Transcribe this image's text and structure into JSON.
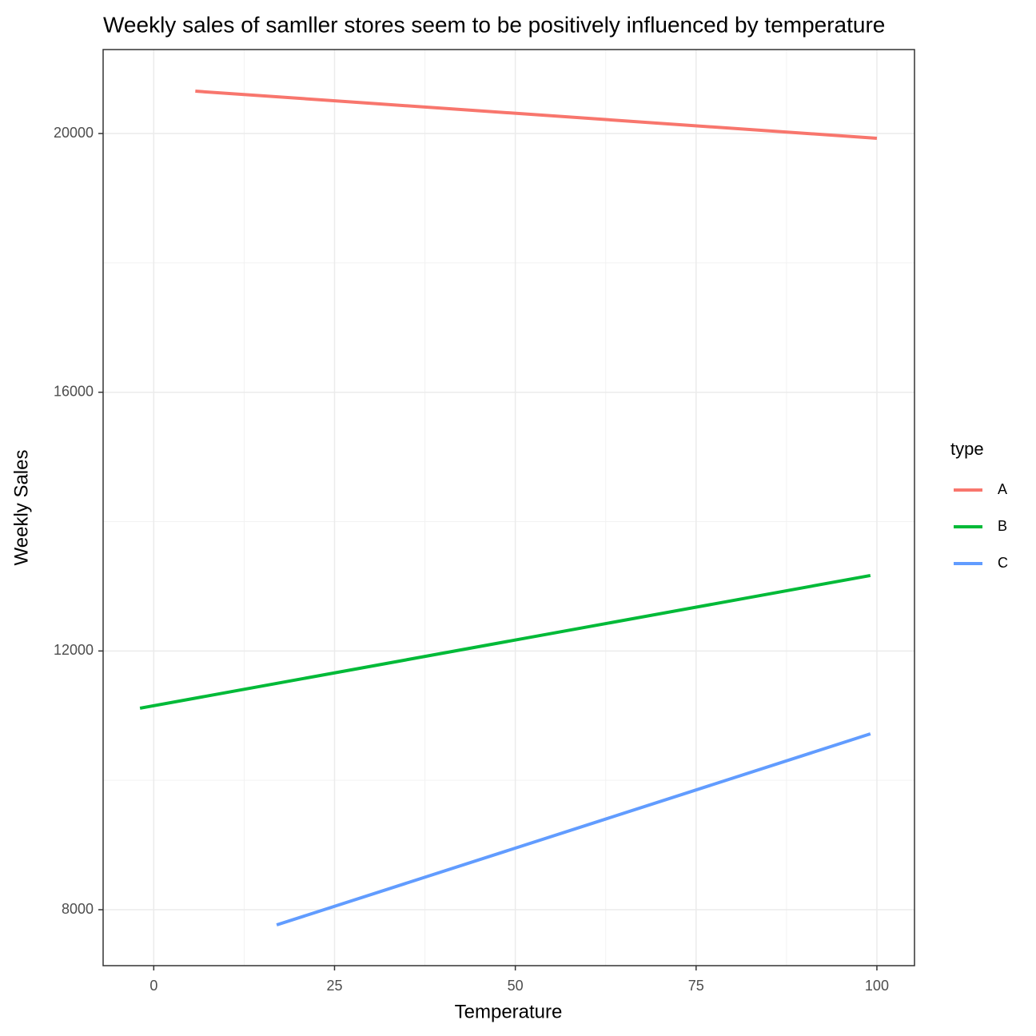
{
  "chart_data": {
    "type": "line",
    "title": "Weekly sales of samller stores seem to be positively influenced by temperature",
    "x_label": "Temperature",
    "y_label": "Weekly Sales",
    "legend_title": "type",
    "legend": "right",
    "grid": true,
    "xlim": [
      -7,
      105.2
    ],
    "xticks": [
      0,
      25,
      50,
      75,
      100
    ],
    "ylim": [
      7135,
      21298
    ],
    "yticks": [
      8000,
      12000,
      16000,
      20000
    ],
    "series": [
      {
        "name": "A",
        "color": "#f8766d",
        "x": [
          5.75,
          100
        ],
        "values": [
          20655,
          19926
        ]
      },
      {
        "name": "B",
        "color": "#00ba38",
        "x": [
          -1.9,
          99.1
        ],
        "values": [
          11115,
          13167
        ]
      },
      {
        "name": "C",
        "color": "#619cff",
        "x": [
          17,
          99.1
        ],
        "values": [
          7765,
          10719
        ]
      }
    ]
  }
}
